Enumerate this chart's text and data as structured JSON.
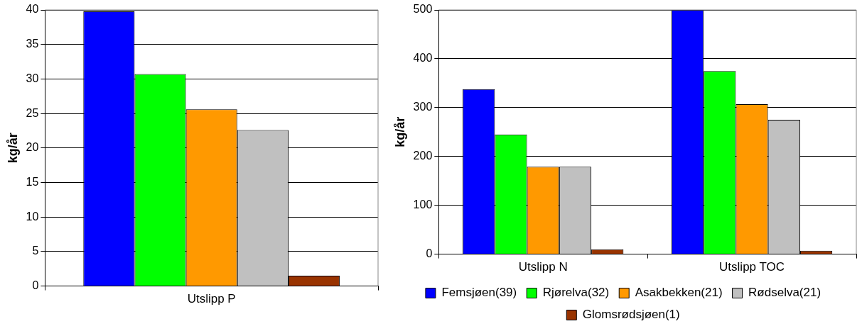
{
  "chart_data": [
    {
      "type": "bar",
      "ylabel": "kg/år",
      "categories": [
        "Utslipp P"
      ],
      "ylim": [
        0,
        40
      ],
      "yticks": [
        0,
        5,
        10,
        15,
        20,
        25,
        30,
        35,
        40
      ],
      "grid": "y",
      "legend": false,
      "series": [
        {
          "color": "#0000ff",
          "values": [
            39.8
          ]
        },
        {
          "color": "#00ff00",
          "values": [
            30.7
          ]
        },
        {
          "color": "#ff9900",
          "values": [
            25.6
          ]
        },
        {
          "color": "#c0c0c0",
          "values": [
            22.6
          ]
        },
        {
          "color": "#993300",
          "values": [
            1.5
          ]
        }
      ]
    },
    {
      "type": "bar",
      "ylabel": "kg/år",
      "categories": [
        "Utslipp N",
        "Utslipp TOC"
      ],
      "ylim": [
        0,
        500
      ],
      "yticks": [
        0,
        100,
        200,
        300,
        400,
        500
      ],
      "grid": "y",
      "legend": "bottom",
      "series": [
        {
          "name": "Femsjøen(39)",
          "color": "#0000ff",
          "values": [
            338,
            500
          ]
        },
        {
          "name": "Rjørelva(32)",
          "color": "#00ff00",
          "values": [
            245,
            375
          ]
        },
        {
          "name": "Asakbekken(21)",
          "color": "#ff9900",
          "values": [
            179,
            307
          ]
        },
        {
          "name": "Rødselva(21)",
          "color": "#c0c0c0",
          "values": [
            179,
            275
          ]
        },
        {
          "name": "Glomsrødsjøen(1)",
          "color": "#993300",
          "values": [
            10,
            7
          ]
        }
      ]
    }
  ]
}
